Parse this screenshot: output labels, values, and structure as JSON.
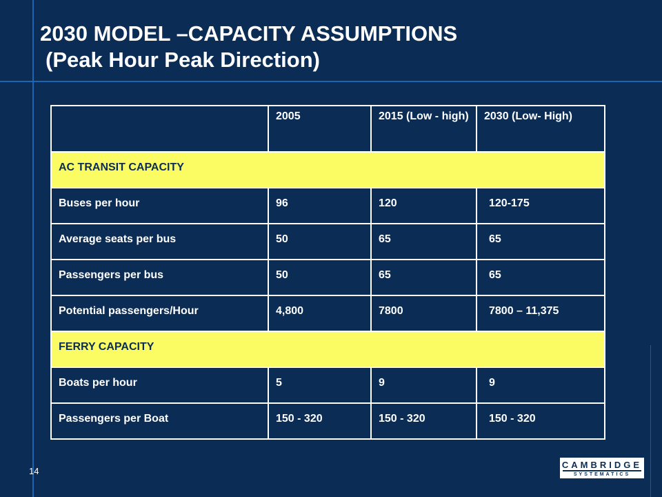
{
  "slide": {
    "title_line1": "2030 MODEL –CAPACITY ASSUMPTIONS",
    "title_line2": "(Peak Hour Peak Direction)",
    "page_number": "14"
  },
  "table": {
    "headers": [
      "",
      "2005",
      "2015 (Low - high)",
      "2030 (Low- High)"
    ],
    "sections": [
      {
        "title": "AC TRANSIT CAPACITY",
        "rows": [
          [
            "Buses per hour",
            "96",
            "120",
            "120-175"
          ],
          [
            "Average seats per bus",
            "50",
            "65",
            "65"
          ],
          [
            "Passengers per bus",
            "50",
            "65",
            "65"
          ],
          [
            "Potential passengers/Hour",
            "4,800",
            "7800",
            "7800 – 11,375"
          ]
        ]
      },
      {
        "title": "FERRY CAPACITY",
        "rows": [
          [
            "Boats per hour",
            "5",
            "9",
            "9"
          ],
          [
            "Passengers per Boat",
            "150 - 320",
            "150 - 320",
            "150 - 320"
          ]
        ]
      }
    ]
  },
  "logo": {
    "line1": "CAMBRIDGE",
    "line2": "SYSTEMATICS"
  },
  "colors": {
    "background": "#0b2d55",
    "accent_lines": "#1c64b4",
    "section_fill": "#fbfb64",
    "text": "#ffffff"
  }
}
